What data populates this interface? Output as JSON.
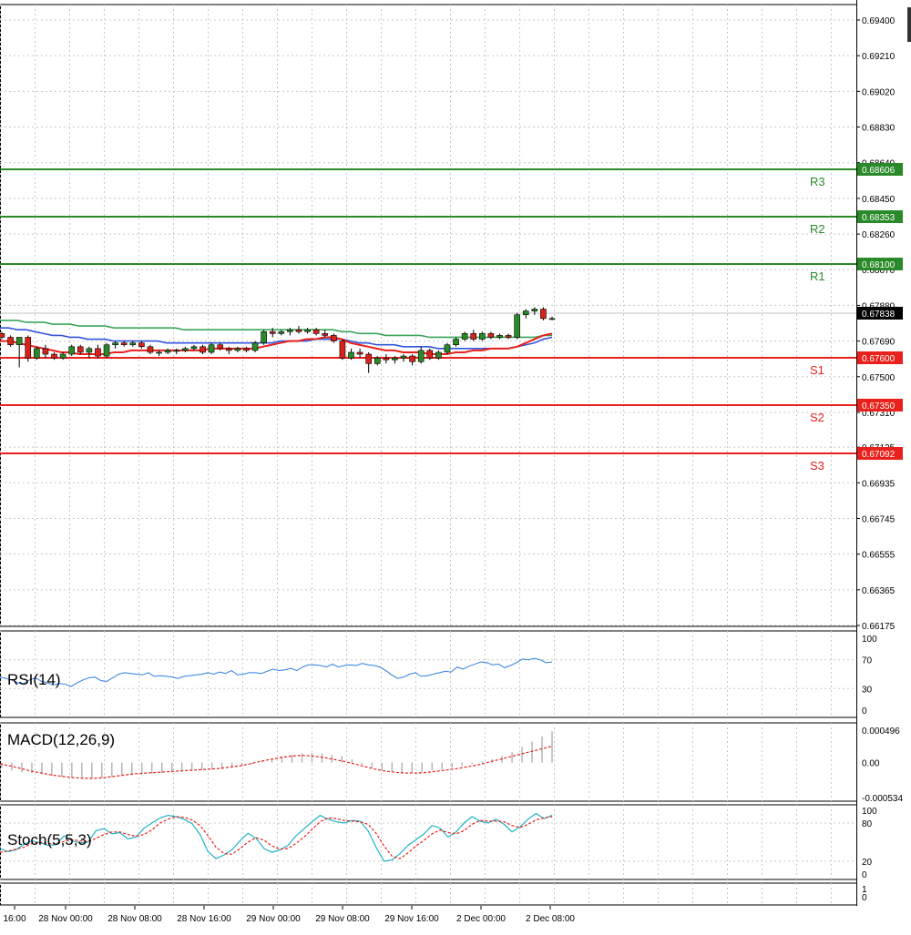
{
  "colors": {
    "resistance": "#2a8a2a",
    "support": "#e8211c",
    "bull_candle": "#2a8a2a",
    "bear_candle": "#d8231b",
    "ma_fast": "#e8211c",
    "ma_mid": "#3355dd",
    "ma_slow": "#3aa65a",
    "rsi_line": "#2e7fe0",
    "macd_hist": "#b0b0b0",
    "macd_signal": "#e8211c",
    "stoch_main": "#22b3c8",
    "stoch_signal": "#e8211c",
    "grid": "#c8c8c8",
    "current_price_bg": "#000000"
  },
  "chart_data": [
    {
      "type": "candlestick",
      "symbol_panel": "price",
      "y_ticks": [
        "0.69400",
        "0.69210",
        "0.69020",
        "0.68830",
        "0.68640",
        "0.68450",
        "0.68260",
        "0.68070",
        "0.67880",
        "0.67690",
        "0.67500",
        "0.67310",
        "0.67125",
        "0.66935",
        "0.66745",
        "0.66555",
        "0.66365",
        "0.66175"
      ],
      "ylim": [
        0.66175,
        0.694
      ],
      "current_price": "0.67838",
      "levels": [
        {
          "name": "R3",
          "value": "0.68606",
          "kind": "resistance"
        },
        {
          "name": "R2",
          "value": "0.68353",
          "kind": "resistance"
        },
        {
          "name": "R1",
          "value": "0.68100",
          "kind": "resistance"
        },
        {
          "name": "S1",
          "value": "0.67600",
          "kind": "support"
        },
        {
          "name": "S2",
          "value": "0.67350",
          "kind": "support"
        },
        {
          "name": "S3",
          "value": "0.67092",
          "kind": "support"
        }
      ],
      "candles": [
        [
          0.6773,
          0.6774,
          0.677,
          0.6771
        ],
        [
          0.6771,
          0.6772,
          0.6766,
          0.6767
        ],
        [
          0.6767,
          0.6768,
          0.6755,
          0.6771
        ],
        [
          0.6771,
          0.6772,
          0.6758,
          0.676
        ],
        [
          0.676,
          0.6766,
          0.6759,
          0.6765
        ],
        [
          0.6765,
          0.6767,
          0.676,
          0.6762
        ],
        [
          0.6762,
          0.6763,
          0.6759,
          0.676
        ],
        [
          0.676,
          0.6763,
          0.6759,
          0.6762
        ],
        [
          0.6762,
          0.6767,
          0.6761,
          0.6766
        ],
        [
          0.6766,
          0.6767,
          0.6762,
          0.6763
        ],
        [
          0.6763,
          0.6766,
          0.676,
          0.6765
        ],
        [
          0.6765,
          0.6767,
          0.676,
          0.6761
        ],
        [
          0.6761,
          0.6768,
          0.676,
          0.6767
        ],
        [
          0.6767,
          0.6769,
          0.6765,
          0.6768
        ],
        [
          0.6768,
          0.6769,
          0.6766,
          0.6767
        ],
        [
          0.6767,
          0.6769,
          0.6766,
          0.6768
        ],
        [
          0.6768,
          0.6769,
          0.6765,
          0.6766
        ],
        [
          0.6766,
          0.6767,
          0.6762,
          0.6763
        ],
        [
          0.6763,
          0.6764,
          0.6761,
          0.6763
        ],
        [
          0.6763,
          0.6765,
          0.6762,
          0.6764
        ],
        [
          0.6764,
          0.6765,
          0.6762,
          0.6764
        ],
        [
          0.6764,
          0.6766,
          0.6763,
          0.6765
        ],
        [
          0.6765,
          0.6767,
          0.6764,
          0.6766
        ],
        [
          0.6766,
          0.6767,
          0.6762,
          0.6763
        ],
        [
          0.6763,
          0.6768,
          0.6762,
          0.6767
        ],
        [
          0.6767,
          0.6768,
          0.6764,
          0.6765
        ],
        [
          0.6765,
          0.6766,
          0.6762,
          0.6764
        ],
        [
          0.6764,
          0.6766,
          0.6763,
          0.6765
        ],
        [
          0.6765,
          0.6766,
          0.6763,
          0.6764
        ],
        [
          0.6764,
          0.6769,
          0.6763,
          0.6768
        ],
        [
          0.6768,
          0.6775,
          0.6767,
          0.6774
        ],
        [
          0.6774,
          0.6776,
          0.6771,
          0.6773
        ],
        [
          0.6773,
          0.6775,
          0.6772,
          0.6774
        ],
        [
          0.6774,
          0.6776,
          0.6772,
          0.6775
        ],
        [
          0.6775,
          0.6777,
          0.6773,
          0.6774
        ],
        [
          0.6774,
          0.6776,
          0.6773,
          0.6775
        ],
        [
          0.6775,
          0.6776,
          0.6772,
          0.6773
        ],
        [
          0.6773,
          0.6775,
          0.6771,
          0.6772
        ],
        [
          0.6772,
          0.6773,
          0.6768,
          0.6769
        ],
        [
          0.6769,
          0.677,
          0.6759,
          0.676
        ],
        [
          0.676,
          0.6765,
          0.6759,
          0.6763
        ],
        [
          0.6763,
          0.6765,
          0.676,
          0.6762
        ],
        [
          0.6762,
          0.6763,
          0.6752,
          0.6757
        ],
        [
          0.6757,
          0.6761,
          0.6756,
          0.676
        ],
        [
          0.676,
          0.6762,
          0.6757,
          0.6759
        ],
        [
          0.6759,
          0.6761,
          0.6757,
          0.676
        ],
        [
          0.676,
          0.6762,
          0.6758,
          0.6761
        ],
        [
          0.6761,
          0.6762,
          0.6756,
          0.6758
        ],
        [
          0.6758,
          0.6766,
          0.6757,
          0.6764
        ],
        [
          0.6764,
          0.6765,
          0.6759,
          0.676
        ],
        [
          0.676,
          0.6764,
          0.6759,
          0.6763
        ],
        [
          0.6763,
          0.6768,
          0.6762,
          0.6767
        ],
        [
          0.6767,
          0.6771,
          0.6766,
          0.677
        ],
        [
          0.677,
          0.6774,
          0.6769,
          0.6773
        ],
        [
          0.6773,
          0.6775,
          0.6769,
          0.677
        ],
        [
          0.677,
          0.6774,
          0.6769,
          0.6773
        ],
        [
          0.6773,
          0.6774,
          0.677,
          0.6771
        ],
        [
          0.6771,
          0.6773,
          0.677,
          0.6772
        ],
        [
          0.6772,
          0.6773,
          0.677,
          0.6771
        ],
        [
          0.6771,
          0.6784,
          0.677,
          0.6783
        ],
        [
          0.6783,
          0.6786,
          0.6781,
          0.6785
        ],
        [
          0.6785,
          0.6787,
          0.6783,
          0.6786
        ],
        [
          0.6786,
          0.6787,
          0.678,
          0.6781
        ],
        [
          0.6781,
          0.6782,
          0.678,
          0.6781
        ]
      ],
      "ma_fast": [
        0.6769,
        0.6769,
        0.6768,
        0.6767,
        0.6766,
        0.6765,
        0.6764,
        0.6763,
        0.6763,
        0.6762,
        0.6762,
        0.6762,
        0.6762,
        0.6763,
        0.6763,
        0.6764,
        0.6764,
        0.6764,
        0.6764,
        0.6764,
        0.6764,
        0.6764,
        0.6764,
        0.6764,
        0.6765,
        0.6765,
        0.6765,
        0.6765,
        0.6765,
        0.6765,
        0.6766,
        0.6767,
        0.6768,
        0.6769,
        0.6769,
        0.677,
        0.677,
        0.6771,
        0.6771,
        0.677,
        0.6768,
        0.6767,
        0.6766,
        0.6765,
        0.6764,
        0.6764,
        0.6763,
        0.6763,
        0.6763,
        0.6762,
        0.6762,
        0.6762,
        0.6763,
        0.6763,
        0.6764,
        0.6764,
        0.6765,
        0.6765,
        0.6765,
        0.6766,
        0.6768,
        0.677,
        0.6772,
        0.6773
      ],
      "ma_mid": [
        0.6776,
        0.6776,
        0.6775,
        0.6775,
        0.6774,
        0.6773,
        0.6772,
        0.6772,
        0.6771,
        0.6771,
        0.677,
        0.677,
        0.677,
        0.6769,
        0.6769,
        0.6769,
        0.6769,
        0.6769,
        0.6769,
        0.6768,
        0.6768,
        0.6768,
        0.6768,
        0.6768,
        0.6768,
        0.6768,
        0.6768,
        0.6768,
        0.6768,
        0.6768,
        0.6768,
        0.6768,
        0.6769,
        0.6769,
        0.6769,
        0.6769,
        0.677,
        0.677,
        0.677,
        0.677,
        0.6769,
        0.6768,
        0.6768,
        0.6767,
        0.6767,
        0.6767,
        0.6766,
        0.6766,
        0.6766,
        0.6766,
        0.6765,
        0.6765,
        0.6765,
        0.6765,
        0.6765,
        0.6765,
        0.6765,
        0.6765,
        0.6765,
        0.6766,
        0.6767,
        0.6768,
        0.677,
        0.6771
      ],
      "ma_slow": [
        0.678,
        0.678,
        0.678,
        0.6779,
        0.6779,
        0.6779,
        0.6778,
        0.6778,
        0.6778,
        0.6777,
        0.6777,
        0.6777,
        0.6777,
        0.6776,
        0.6776,
        0.6776,
        0.6776,
        0.6776,
        0.6776,
        0.6776,
        0.6776,
        0.6775,
        0.6775,
        0.6775,
        0.6775,
        0.6775,
        0.6775,
        0.6775,
        0.6775,
        0.6775,
        0.6775,
        0.6775,
        0.6775,
        0.6775,
        0.6775,
        0.6775,
        0.6775,
        0.6775,
        0.6775,
        0.6774,
        0.6774,
        0.6773,
        0.6773,
        0.6773,
        0.6772,
        0.6772,
        0.6772,
        0.6772,
        0.6772,
        0.6771,
        0.6771,
        0.6771,
        0.6771,
        0.6771,
        0.6771,
        0.6771,
        0.6771,
        0.6771,
        0.6771,
        0.6771,
        0.6771,
        0.6771,
        0.6772,
        0.6772
      ]
    },
    {
      "type": "line",
      "symbol_panel": "rsi",
      "title": "RSI(14)",
      "y_ticks": [
        "100",
        "70",
        "30",
        "0"
      ],
      "ylim": [
        0,
        100
      ],
      "values": [
        46,
        44,
        42,
        38,
        37,
        42,
        45,
        40,
        38,
        35,
        37,
        36,
        33,
        38,
        42,
        45,
        46,
        41,
        40,
        45,
        50,
        52,
        51,
        50,
        49,
        52,
        47,
        48,
        47,
        46,
        44,
        47,
        48,
        49,
        50,
        52,
        50,
        53,
        51,
        55,
        49,
        50,
        52,
        52,
        51,
        54,
        57,
        55,
        56,
        58,
        55,
        60,
        63,
        63,
        62,
        60,
        64,
        60,
        62,
        63,
        62,
        65,
        63,
        62,
        60,
        55,
        49,
        44,
        46,
        50,
        52,
        47,
        48,
        50,
        52,
        54,
        53,
        60,
        57,
        61,
        64,
        67,
        66,
        63,
        64,
        59,
        62,
        66,
        71,
        70,
        72,
        70,
        66,
        67
      ]
    },
    {
      "type": "bar+line",
      "symbol_panel": "macd",
      "title": "MACD(12,26,9)",
      "y_ticks": [
        "0.000496",
        "0.00",
        "-0.000534"
      ],
      "ylim": [
        -0.000534,
        0.000496
      ],
      "hist": [
        -8e-05,
        -0.00012,
        -0.00015,
        -0.00016,
        -0.00018,
        -0.0002,
        -0.00022,
        -0.00023,
        -0.00024,
        -0.00025,
        -0.00024,
        -0.00022,
        -0.0002,
        -0.00019,
        -0.00018,
        -0.00017,
        -0.00016,
        -0.00015,
        -0.00014,
        -0.00013,
        -0.00012,
        -0.00011,
        -0.0001,
        -8e-05,
        -5e-05,
        -2e-05,
        3e-05,
        6e-05,
        9e-05,
        0.00012,
        0.00014,
        0.00015,
        0.00014,
        0.00012,
        0.0001,
        5e-05,
        -3e-05,
        -8e-05,
        -0.00012,
        -0.00014,
        -0.00016,
        -0.00015,
        -0.00014,
        -0.00012,
        -0.0001,
        -8e-05,
        -5e-05,
        -2e-05,
        2e-05,
        5e-05,
        0.0001,
        0.00016,
        0.00024,
        0.00032,
        0.0004,
        0.00048
      ],
      "signal": [
        -2e-05,
        -5e-05,
        -9e-05,
        -0.00013,
        -0.00016,
        -0.00019,
        -0.00021,
        -0.00023,
        -0.00024,
        -0.00024,
        -0.00023,
        -0.00021,
        -0.00019,
        -0.00017,
        -0.00016,
        -0.00015,
        -0.00014,
        -0.00013,
        -0.00012,
        -0.00011,
        -0.0001,
        -9e-05,
        -7e-05,
        -5e-05,
        -2e-05,
        2e-05,
        5e-05,
        8e-05,
        0.0001,
        0.00011,
        0.0001,
        8e-05,
        5e-05,
        2e-05,
        -2e-05,
        -6e-05,
        -0.0001,
        -0.00013,
        -0.00015,
        -0.00016,
        -0.00016,
        -0.00015,
        -0.00013,
        -0.00011,
        -9e-05,
        -6e-05,
        -3e-05,
        1e-05,
        5e-05,
        9e-05,
        0.00013,
        0.00017,
        0.00021,
        0.00025
      ]
    },
    {
      "type": "line",
      "symbol_panel": "stoch",
      "title": "Stoch(5,5,3)",
      "y_ticks": [
        "100",
        "80",
        "20",
        "0"
      ],
      "ylim": [
        0,
        100
      ],
      "main": [
        40,
        35,
        38,
        47,
        52,
        49,
        45,
        46,
        60,
        52,
        49,
        50,
        68,
        71,
        63,
        65,
        55,
        58,
        72,
        80,
        88,
        92,
        90,
        86,
        79,
        62,
        35,
        24,
        30,
        38,
        52,
        64,
        56,
        40,
        34,
        38,
        45,
        60,
        71,
        82,
        92,
        86,
        82,
        80,
        84,
        83,
        68,
        42,
        20,
        22,
        32,
        45,
        54,
        63,
        76,
        72,
        58,
        66,
        80,
        90,
        83,
        80,
        86,
        78,
        66,
        74,
        86,
        95,
        87,
        92
      ],
      "signal": [
        34,
        36,
        39,
        42,
        48,
        50,
        48,
        47,
        51,
        54,
        52,
        51,
        56,
        62,
        66,
        66,
        62,
        59,
        62,
        69,
        80,
        86,
        90,
        89,
        85,
        76,
        60,
        42,
        32,
        31,
        40,
        50,
        57,
        53,
        44,
        39,
        40,
        48,
        58,
        70,
        82,
        88,
        87,
        84,
        83,
        82,
        78,
        64,
        44,
        28,
        24,
        33,
        44,
        53,
        63,
        69,
        65,
        63,
        68,
        78,
        84,
        83,
        83,
        82,
        76,
        73,
        78,
        85,
        88,
        90
      ]
    }
  ],
  "time_axis": {
    "labels": [
      "16:00",
      "28 Nov 00:00",
      "28 Nov 08:00",
      "28 Nov 16:00",
      "29 Nov 00:00",
      "29 Nov 08:00",
      "29 Nov 16:00",
      "2 Dec 00:00",
      "2 Dec 08:00"
    ]
  },
  "extra_panel": {
    "y_ticks": [
      "1",
      "0"
    ]
  }
}
